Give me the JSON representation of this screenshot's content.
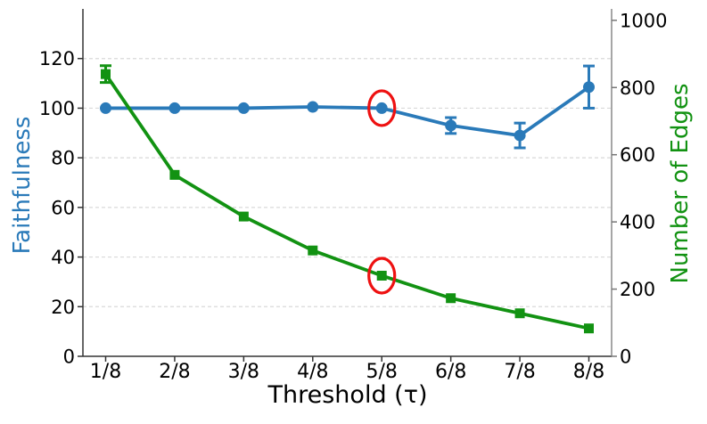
{
  "chart_data": {
    "type": "line",
    "title": "",
    "xlabel": "Threshold (τ)",
    "x_categories": [
      "1/8",
      "2/8",
      "3/8",
      "4/8",
      "5/8",
      "6/8",
      "7/8",
      "8/8"
    ],
    "grid": "horizontal-dashed",
    "legend_position": "none",
    "left_axis": {
      "label": "Faithfulness",
      "color": "#2a7ab9",
      "ticks": [
        0,
        20,
        40,
        60,
        80,
        100,
        120
      ],
      "lim": [
        0,
        140
      ]
    },
    "right_axis": {
      "label": "Number of Edges",
      "color": "#129212",
      "ticks": [
        0,
        200,
        400,
        600,
        800,
        1000
      ],
      "lim": [
        0,
        1034
      ]
    },
    "series": [
      {
        "name": "Faithfulness",
        "axis": "left",
        "color": "#2a7ab9",
        "marker": "circle",
        "values": [
          100,
          100,
          100,
          100.5,
          100,
          93,
          89,
          108.5
        ],
        "errors": [
          0,
          0,
          0,
          0,
          0,
          3.2,
          5,
          8.5
        ]
      },
      {
        "name": "Number of Edges",
        "axis": "right",
        "color": "#129212",
        "marker": "square",
        "values": [
          840,
          540,
          416,
          315,
          240,
          173,
          128,
          83
        ],
        "errors": [
          25,
          0,
          0,
          0,
          0,
          0,
          0,
          0
        ]
      }
    ],
    "annotations": {
      "type": "ellipse-highlight",
      "color": "#ee1111",
      "items": [
        {
          "series": 0,
          "index": 4,
          "x_category": "5/8"
        },
        {
          "series": 1,
          "index": 4,
          "x_category": "5/8"
        }
      ]
    }
  }
}
